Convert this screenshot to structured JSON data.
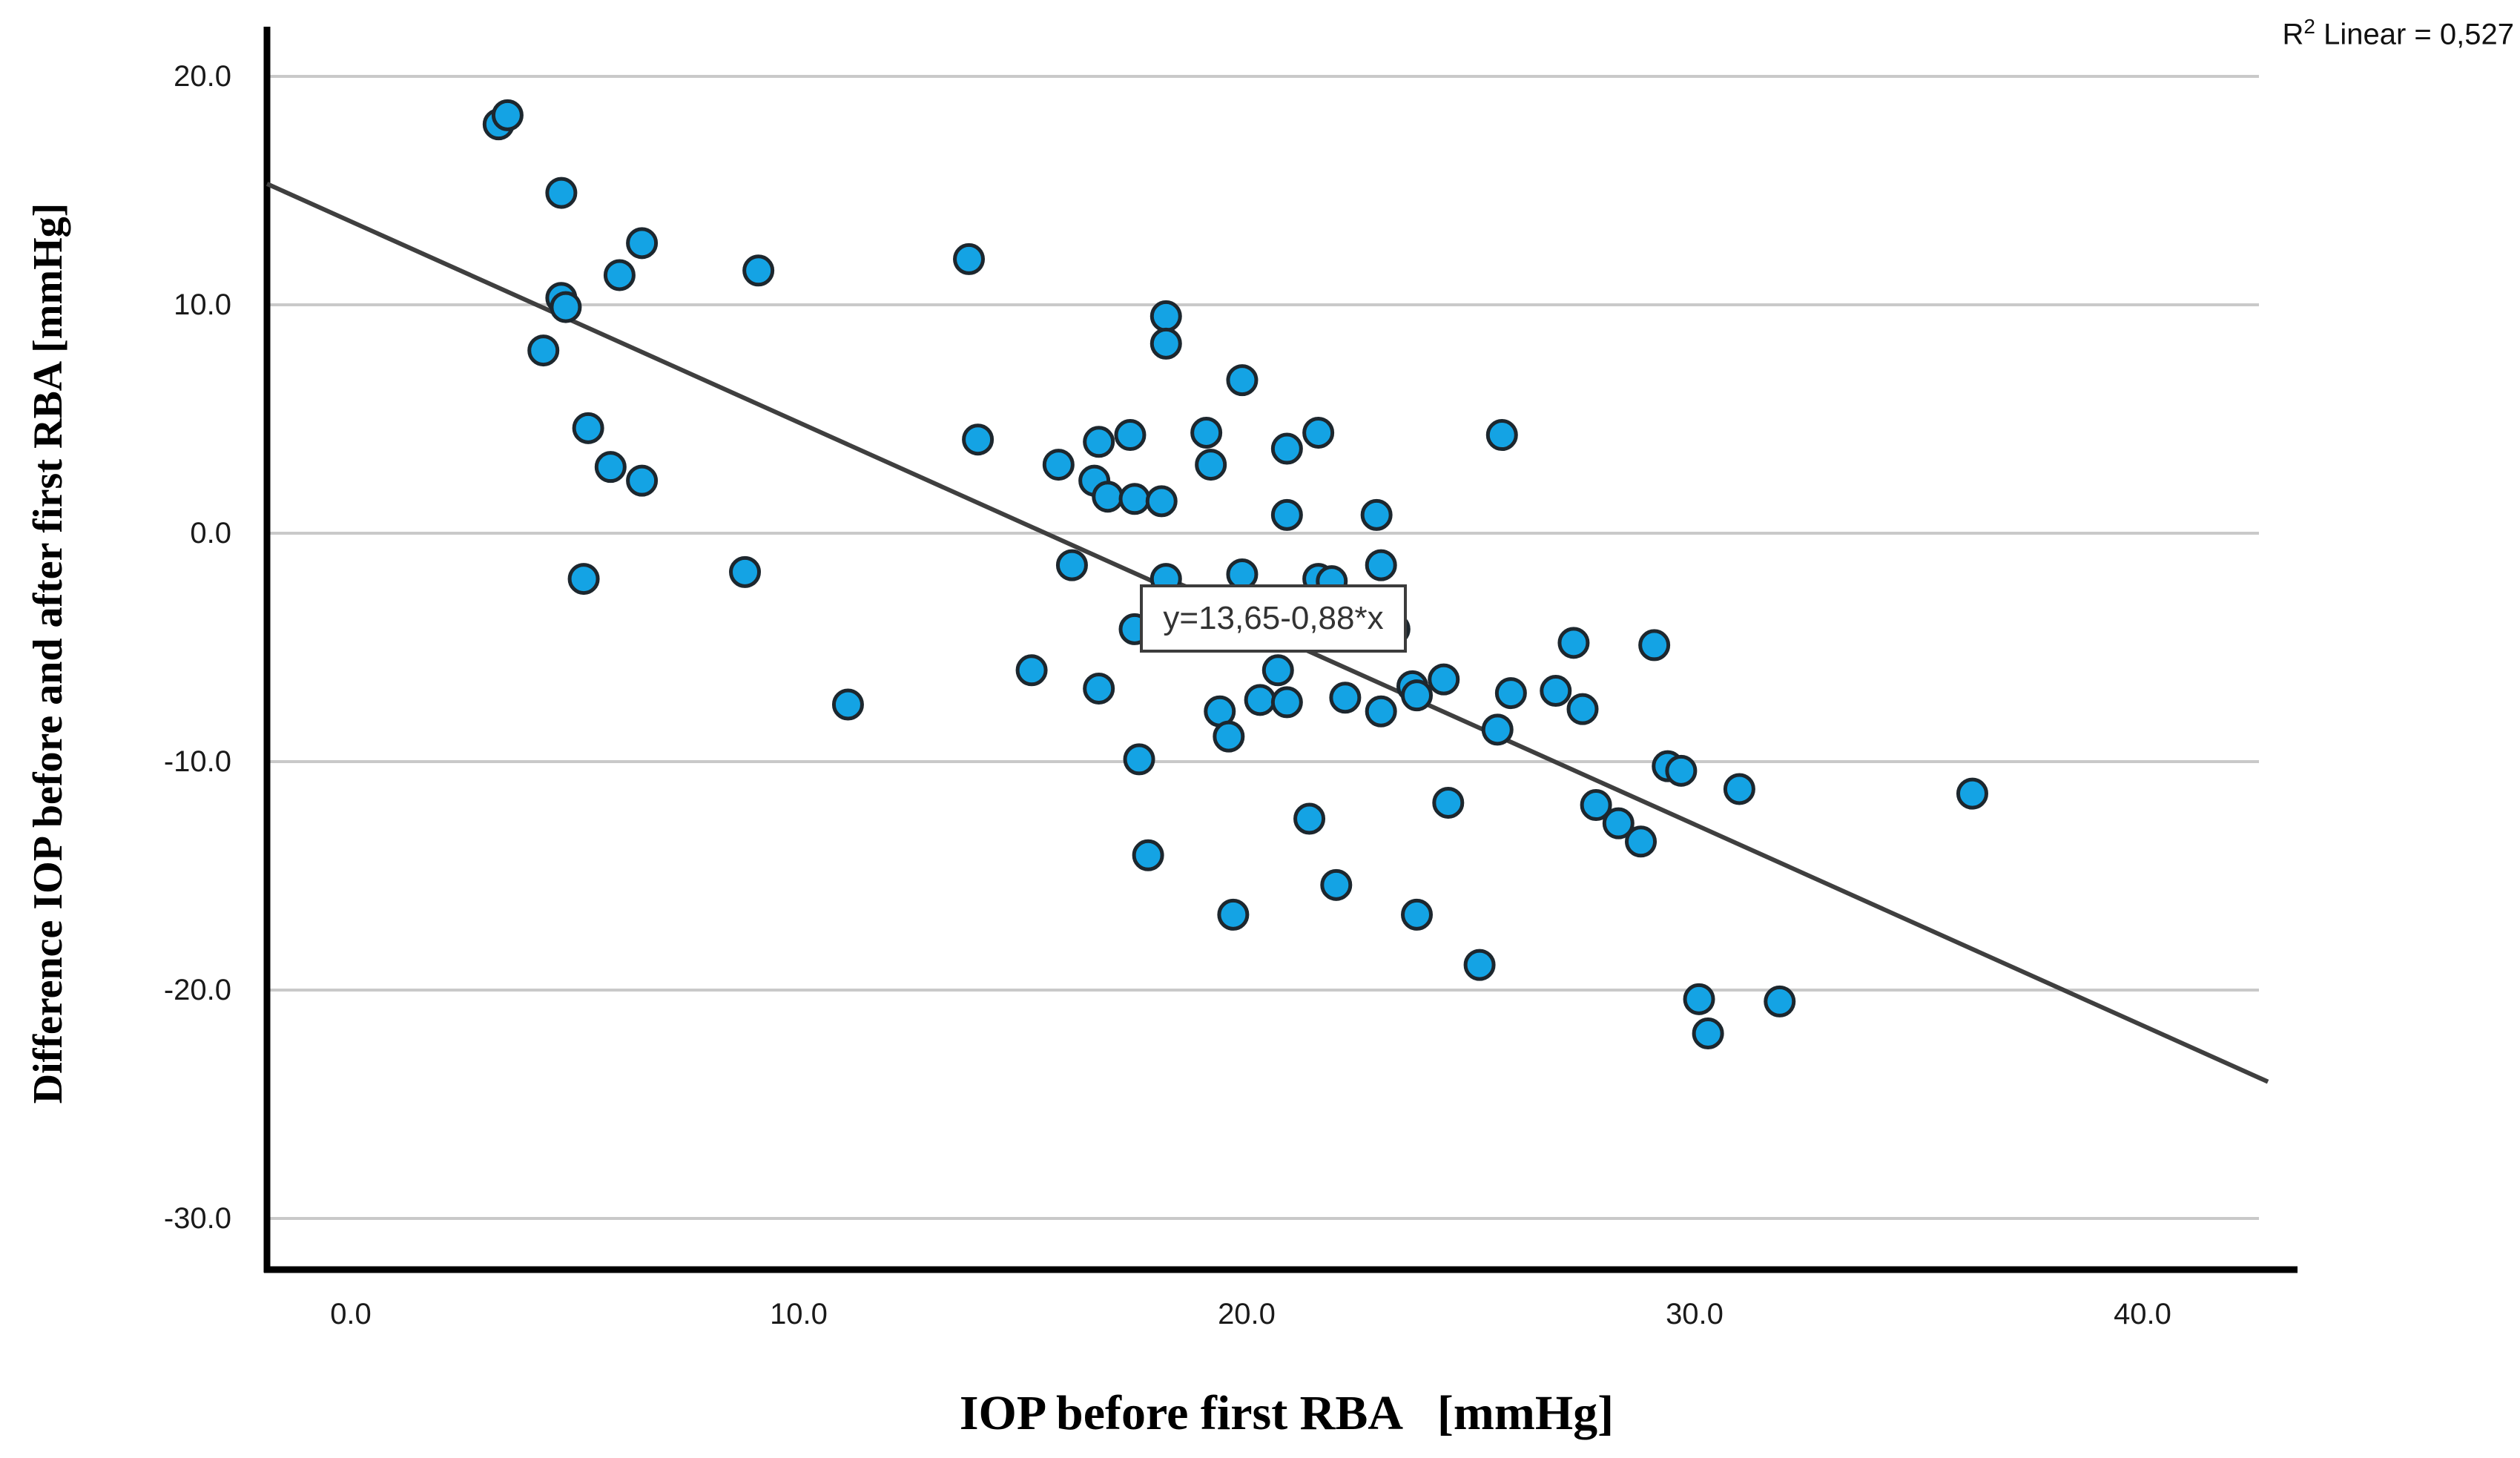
{
  "annotation": {
    "r2_base": "R",
    "r2_sup": "2",
    "r2_rest": " Linear = 0,527"
  },
  "equation_label": "y=13,65-0,88*x",
  "axes": {
    "x_title": "IOP before first RBA   [mmHg]",
    "y_title": "Difference IOP before and after first RBA [mmHg]",
    "x_tick_labels": [
      "0.0",
      "10.0",
      "20.0",
      "30.0",
      "40.0"
    ],
    "x_tick_values": [
      0,
      10,
      20,
      30,
      40
    ],
    "y_tick_labels": [
      "20.0",
      "10.0",
      "0.0",
      "-10.0",
      "-20.0",
      "-30.0"
    ],
    "y_tick_values": [
      20,
      10,
      0,
      -10,
      -20,
      -30
    ]
  },
  "colors": {
    "point_fill": "#14a3e4",
    "point_stroke": "#1d272e",
    "grid": "#c9c9c9",
    "axis": "#000000",
    "regression_line": "#3f3f3f",
    "box_border": "#3c3c3c"
  },
  "chart_data": {
    "type": "scatter",
    "title": "",
    "xlabel": "IOP before first RBA [mmHg]",
    "ylabel": "Difference IOP before and after first RBA [mmHg]",
    "xlim": [
      -1.9,
      42.8
    ],
    "ylim": [
      -32.2,
      22.2
    ],
    "grid": "horizontal-only",
    "legend": "none",
    "annotation_top_right": "R2 Linear = 0,527",
    "regression": {
      "equation_label": "y=13,65-0,88*x",
      "intercept": 13.65,
      "slope": -0.88,
      "r2": 0.527,
      "x_start": -1.87,
      "x_end": 42.8
    },
    "points": [
      [
        3.3,
        17.9
      ],
      [
        3.5,
        18.3
      ],
      [
        4.7,
        14.9
      ],
      [
        6.5,
        12.7
      ],
      [
        6.0,
        11.3
      ],
      [
        9.1,
        11.5
      ],
      [
        4.7,
        10.3
      ],
      [
        4.8,
        9.9
      ],
      [
        4.3,
        8.0
      ],
      [
        5.3,
        4.6
      ],
      [
        5.8,
        2.9
      ],
      [
        6.5,
        2.3
      ],
      [
        13.8,
        12.0
      ],
      [
        14.0,
        4.1
      ],
      [
        18.2,
        9.5
      ],
      [
        18.2,
        8.3
      ],
      [
        17.4,
        4.3
      ],
      [
        16.7,
        4.0
      ],
      [
        15.8,
        3.0
      ],
      [
        19.1,
        4.4
      ],
      [
        19.2,
        3.0
      ],
      [
        16.6,
        2.3
      ],
      [
        16.9,
        1.6
      ],
      [
        17.5,
        1.5
      ],
      [
        18.1,
        1.4
      ],
      [
        19.9,
        6.7
      ],
      [
        20.9,
        3.7
      ],
      [
        21.6,
        4.4
      ],
      [
        25.7,
        4.3
      ],
      [
        20.9,
        0.8
      ],
      [
        22.9,
        0.8
      ],
      [
        16.1,
        -1.4
      ],
      [
        18.2,
        -2.0
      ],
      [
        19.9,
        -1.8
      ],
      [
        21.6,
        -2.0
      ],
      [
        21.9,
        -2.1
      ],
      [
        23.0,
        -1.4
      ],
      [
        5.2,
        -2.0
      ],
      [
        8.8,
        -1.7
      ],
      [
        11.1,
        -7.5
      ],
      [
        15.2,
        -6.0
      ],
      [
        16.7,
        -6.8
      ],
      [
        17.5,
        -4.2
      ],
      [
        19.4,
        -7.8
      ],
      [
        19.6,
        -8.9
      ],
      [
        17.6,
        -9.9
      ],
      [
        17.8,
        -14.1
      ],
      [
        19.7,
        -16.7
      ],
      [
        20.7,
        -6.0
      ],
      [
        20.3,
        -7.3
      ],
      [
        20.9,
        -7.4
      ],
      [
        22.2,
        -7.2
      ],
      [
        23.0,
        -7.8
      ],
      [
        23.7,
        -6.7
      ],
      [
        23.8,
        -7.1
      ],
      [
        24.4,
        -6.4
      ],
      [
        25.9,
        -7.0
      ],
      [
        26.9,
        -6.9
      ],
      [
        27.3,
        -4.8
      ],
      [
        27.5,
        -7.7
      ],
      [
        29.1,
        -4.9
      ],
      [
        23.3,
        -4.2
      ],
      [
        25.6,
        -8.6
      ],
      [
        29.4,
        -10.2
      ],
      [
        29.7,
        -10.4
      ],
      [
        21.4,
        -12.5
      ],
      [
        24.5,
        -11.8
      ],
      [
        22.0,
        -15.4
      ],
      [
        23.8,
        -16.7
      ],
      [
        27.8,
        -11.9
      ],
      [
        28.3,
        -12.7
      ],
      [
        28.8,
        -13.5
      ],
      [
        25.2,
        -18.9
      ],
      [
        31.0,
        -11.2
      ],
      [
        36.2,
        -11.4
      ],
      [
        30.1,
        -20.4
      ],
      [
        30.3,
        -21.9
      ],
      [
        31.9,
        -20.5
      ]
    ]
  }
}
